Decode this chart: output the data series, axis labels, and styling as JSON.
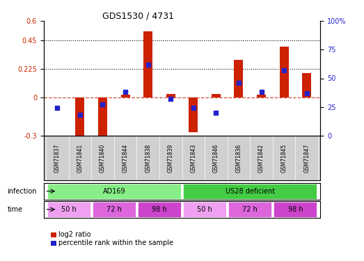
{
  "title": "GDS1530 / 4731",
  "samples": [
    "GSM71837",
    "GSM71841",
    "GSM71840",
    "GSM71844",
    "GSM71838",
    "GSM71839",
    "GSM71843",
    "GSM71846",
    "GSM71836",
    "GSM71842",
    "GSM71845",
    "GSM71847"
  ],
  "log2_ratio": [
    0.0,
    -0.33,
    -0.31,
    0.02,
    0.52,
    0.03,
    -0.27,
    0.03,
    0.295,
    0.02,
    0.4,
    0.19
  ],
  "pct_rank": [
    24,
    18,
    27,
    38,
    62,
    32,
    24,
    20,
    46,
    38,
    57,
    37
  ],
  "ylim_left": [
    -0.3,
    0.6
  ],
  "ylim_right": [
    0,
    100
  ],
  "yticks_left": [
    -0.3,
    0,
    0.225,
    0.45,
    0.6
  ],
  "yticks_right": [
    0,
    25,
    50,
    75,
    100
  ],
  "hlines": [
    0.225,
    0.45
  ],
  "bar_color": "#cc2200",
  "dot_color": "#2222cc",
  "zero_line_color": "#cc2200",
  "infection_labels": [
    {
      "label": "AD169",
      "start": 1,
      "end": 6,
      "color": "#88ee88"
    },
    {
      "label": "US28 deficient",
      "start": 7,
      "end": 12,
      "color": "#44cc44"
    }
  ],
  "time_groups": [
    {
      "label": "50 h",
      "start": 1,
      "end": 2,
      "color": "#f0a0f0"
    },
    {
      "label": "72 h",
      "start": 3,
      "end": 4,
      "color": "#dd66dd"
    },
    {
      "label": "98 h",
      "start": 5,
      "end": 6,
      "color": "#cc44cc"
    },
    {
      "label": "50 h",
      "start": 7,
      "end": 8,
      "color": "#f0a0f0"
    },
    {
      "label": "72 h",
      "start": 9,
      "end": 10,
      "color": "#dd66dd"
    },
    {
      "label": "98 h",
      "start": 11,
      "end": 12,
      "color": "#cc44cc"
    }
  ],
  "legend_items": [
    {
      "label": "log2 ratio",
      "color": "#cc2200"
    },
    {
      "label": "percentile rank within the sample",
      "color": "#2222cc"
    }
  ]
}
